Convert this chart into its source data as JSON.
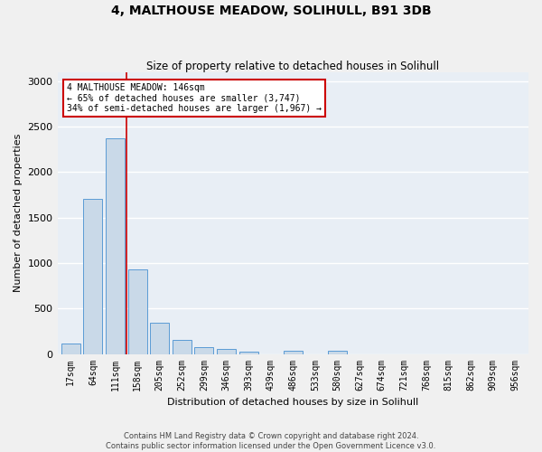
{
  "title": "4, MALTHOUSE MEADOW, SOLIHULL, B91 3DB",
  "subtitle": "Size of property relative to detached houses in Solihull",
  "xlabel": "Distribution of detached houses by size in Solihull",
  "ylabel": "Number of detached properties",
  "bar_labels": [
    "17sqm",
    "64sqm",
    "111sqm",
    "158sqm",
    "205sqm",
    "252sqm",
    "299sqm",
    "346sqm",
    "393sqm",
    "439sqm",
    "486sqm",
    "533sqm",
    "580sqm",
    "627sqm",
    "674sqm",
    "721sqm",
    "768sqm",
    "815sqm",
    "862sqm",
    "909sqm",
    "956sqm"
  ],
  "bar_values": [
    115,
    1700,
    2370,
    930,
    340,
    155,
    80,
    55,
    30,
    0,
    35,
    0,
    35,
    0,
    0,
    0,
    0,
    0,
    0,
    0,
    0
  ],
  "bar_color": "#c9d9e8",
  "bar_edge_color": "#5b9bd5",
  "axes_bg_color": "#e8eef5",
  "fig_bg_color": "#f0f0f0",
  "grid_color": "#ffffff",
  "ylim": [
    0,
    3100
  ],
  "yticks": [
    0,
    500,
    1000,
    1500,
    2000,
    2500,
    3000
  ],
  "property_line_color": "#cc0000",
  "property_line_x": 2.5,
  "annotation_title": "4 MALTHOUSE MEADOW: 146sqm",
  "annotation_line1": "← 65% of detached houses are smaller (3,747)",
  "annotation_line2": "34% of semi-detached houses are larger (1,967) →",
  "annotation_box_edgecolor": "#cc0000",
  "footer_line1": "Contains HM Land Registry data © Crown copyright and database right 2024.",
  "footer_line2": "Contains public sector information licensed under the Open Government Licence v3.0."
}
